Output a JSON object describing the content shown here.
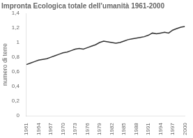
{
  "chart_data": {
    "type": "line",
    "title": "Impronta Ecologica totale dell’umanità 1961-2000",
    "y_label": "numero di terre",
    "x": [
      1961,
      1962,
      1963,
      1964,
      1965,
      1966,
      1967,
      1968,
      1969,
      1970,
      1971,
      1972,
      1973,
      1974,
      1975,
      1976,
      1977,
      1978,
      1979,
      1980,
      1981,
      1982,
      1983,
      1984,
      1985,
      1986,
      1987,
      1988,
      1989,
      1990,
      1991,
      1992,
      1993,
      1994,
      1995,
      1996,
      1997,
      1998,
      1999,
      2000
    ],
    "values": [
      0.7,
      0.72,
      0.74,
      0.76,
      0.77,
      0.78,
      0.8,
      0.82,
      0.84,
      0.86,
      0.87,
      0.89,
      0.91,
      0.92,
      0.91,
      0.93,
      0.95,
      0.97,
      1.0,
      1.02,
      1.01,
      1.0,
      0.99,
      1.0,
      1.02,
      1.04,
      1.05,
      1.06,
      1.07,
      1.08,
      1.1,
      1.13,
      1.12,
      1.13,
      1.14,
      1.13,
      1.17,
      1.19,
      1.21,
      1.22
    ],
    "color": "#333333",
    "xlim": [
      1961,
      2000
    ],
    "xticks": [
      1961,
      1964,
      1967,
      1970,
      1973,
      1976,
      1979,
      1982,
      1985,
      1988,
      1991,
      1994,
      1997,
      2000
    ],
    "ylim": [
      0,
      1.4
    ],
    "yticks": [
      0,
      {
        "value": 0.2,
        "label": "0,2"
      },
      {
        "value": 0.4,
        "label": "0,4"
      },
      {
        "value": 0.6,
        "label": "0,6"
      },
      {
        "value": 0.8,
        "label": "0,8"
      },
      1,
      {
        "value": 1.2,
        "label": "1,2"
      },
      {
        "value": 1.4,
        "label": "1,4"
      }
    ],
    "grid": false
  }
}
